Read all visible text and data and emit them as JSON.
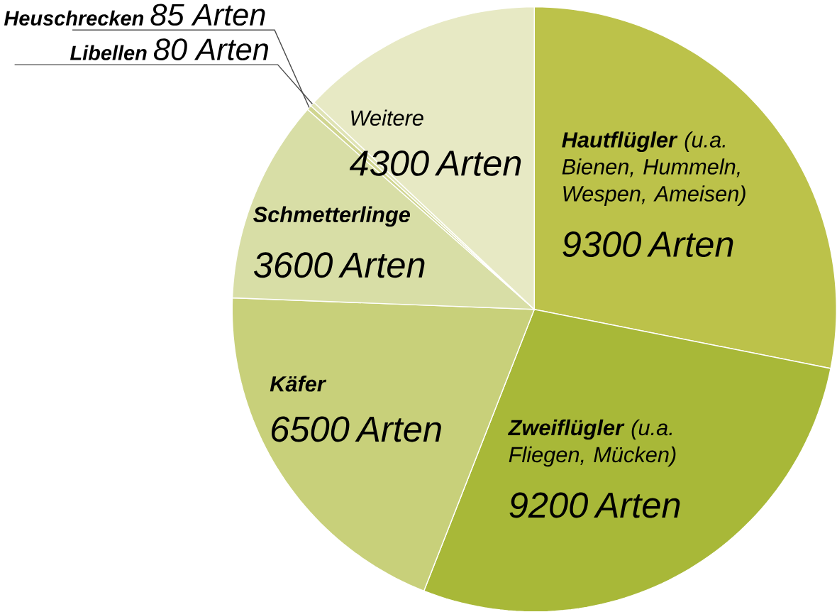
{
  "chart_data": {
    "type": "pie",
    "categories": [
      "**Hautflügler** (u.a. Bienen, Hummeln, Wespen, Ameisen)",
      "**Zweiflügler** (u.a. Fliegen, Mücken)",
      "**Käfer**",
      "**Schmetterlinge**",
      "**Heuschrecken**",
      "**Libellen**",
      "Weitere"
    ],
    "values": [
      9300,
      9200,
      6500,
      3600,
      85,
      80,
      4300
    ],
    "value_labels": [
      "9300 Arten",
      "9200 Arten",
      "6500 Arten",
      "3600 Arten",
      "85 Arten",
      "80 Arten",
      "4300 Arten"
    ],
    "colors": [
      "#bcc24a",
      "#a8b838",
      "#c8d07a",
      "#d8dea6",
      "#d0d590",
      "#dfe3b4",
      "#e7e9c4"
    ]
  }
}
